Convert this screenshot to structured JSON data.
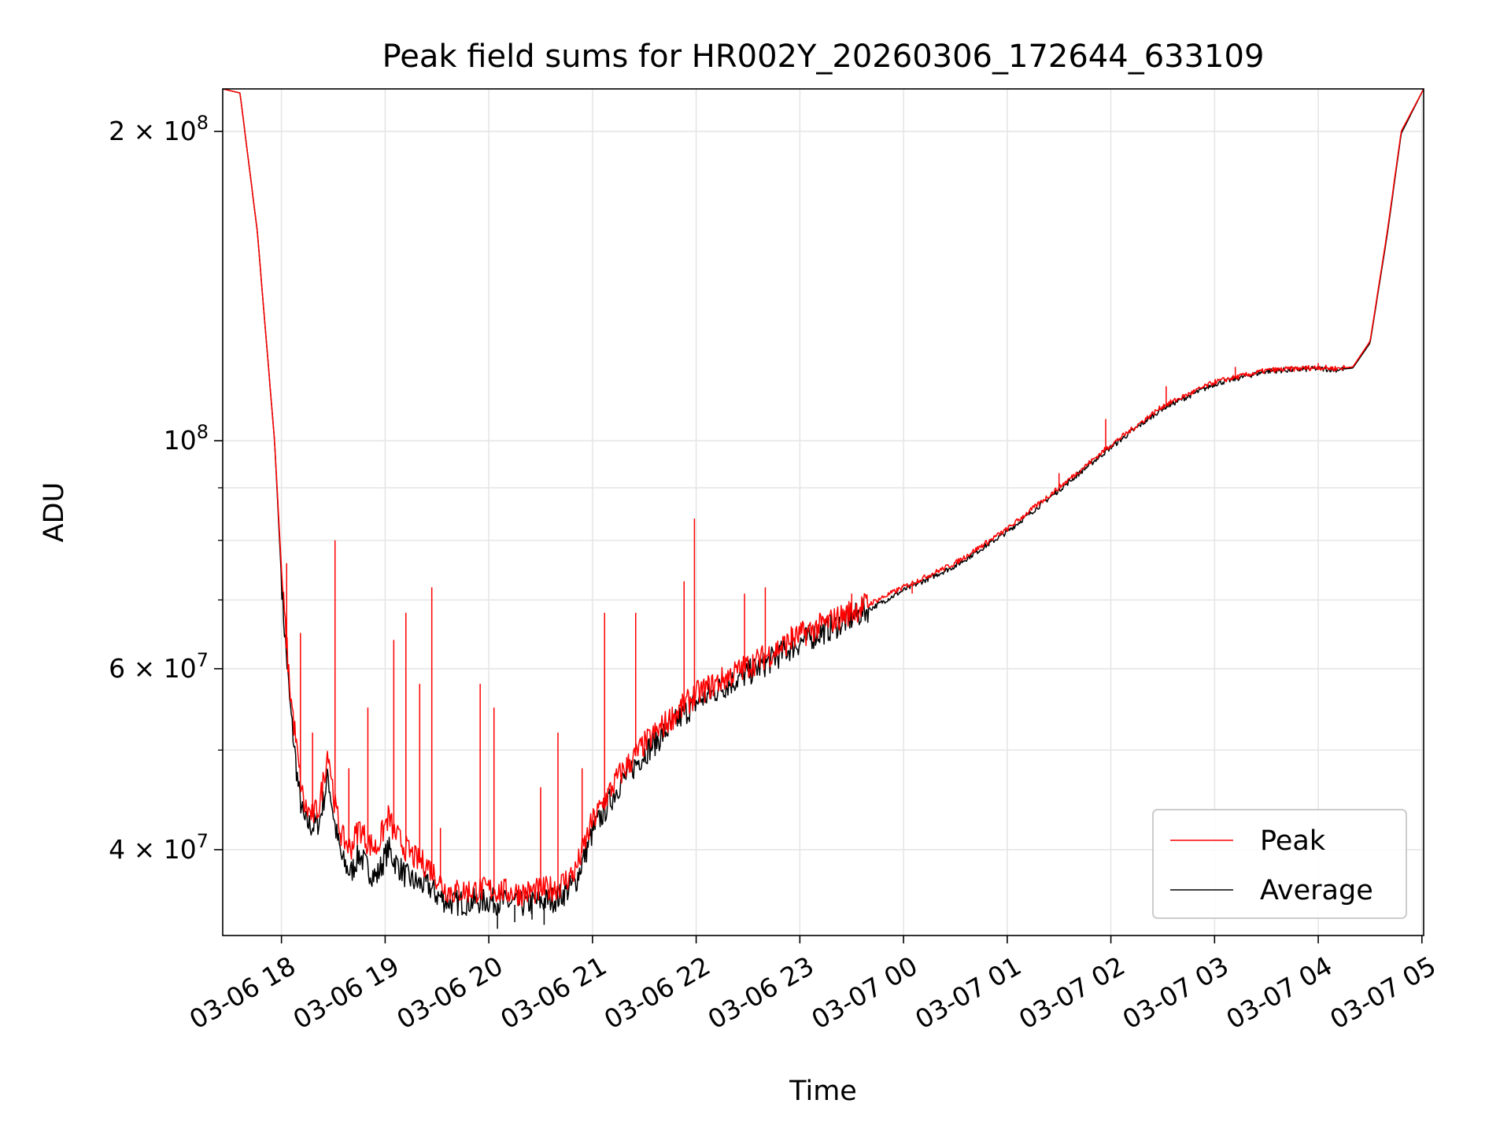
{
  "chart_data": {
    "type": "line",
    "title": "Peak field sums for HR002Y_20260306_172644_633109",
    "xlabel": "Time",
    "ylabel": "ADU",
    "y_scale": "log",
    "xlim": [
      "2026-03-06 17:26",
      "2026-03-07 05:01"
    ],
    "ylim": [
      33000000,
      220000000
    ],
    "grid": true,
    "legend_position": "lower-right",
    "x_ticks": [
      "03-06 18",
      "03-06 19",
      "03-06 20",
      "03-06 21",
      "03-06 22",
      "03-06 23",
      "03-07 00",
      "03-07 01",
      "03-07 02",
      "03-07 03",
      "03-07 04",
      "03-07 05"
    ],
    "x_tick_times": [
      "2026-03-06 18:00",
      "2026-03-06 19:00",
      "2026-03-06 20:00",
      "2026-03-06 21:00",
      "2026-03-06 22:00",
      "2026-03-06 23:00",
      "2026-03-07 00:00",
      "2026-03-07 01:00",
      "2026-03-07 02:00",
      "2026-03-07 03:00",
      "2026-03-07 04:00",
      "2026-03-07 05:00"
    ],
    "y_major_ticks": [
      {
        "value": 40000000,
        "label": "4×10^7"
      },
      {
        "value": 60000000,
        "label": "6×10^7"
      },
      {
        "value": 100000000,
        "label": "10^8"
      },
      {
        "value": 200000000,
        "label": "2×10^8"
      }
    ],
    "y_minor_ticks": [
      30000000,
      50000000,
      70000000,
      80000000,
      90000000
    ],
    "series": [
      {
        "name": "Peak",
        "color": "#ff0000",
        "x": [
          "2026-03-06 17:26",
          "2026-03-06 17:36",
          "2026-03-06 17:46",
          "2026-03-06 17:56",
          "2026-03-06 18:01",
          "2026-03-06 18:05",
          "2026-03-06 18:10",
          "2026-03-06 18:13",
          "2026-03-06 18:18",
          "2026-03-06 18:22",
          "2026-03-06 18:27",
          "2026-03-06 18:31",
          "2026-03-06 18:35",
          "2026-03-06 18:40",
          "2026-03-06 18:45",
          "2026-03-06 18:50",
          "2026-03-06 18:55",
          "2026-03-06 19:02",
          "2026-03-06 19:05",
          "2026-03-06 19:12",
          "2026-03-06 19:18",
          "2026-03-06 19:25",
          "2026-03-06 19:30",
          "2026-03-06 19:35",
          "2026-03-06 19:40",
          "2026-03-06 19:50",
          "2026-03-06 20:00",
          "2026-03-06 20:10",
          "2026-03-06 20:20",
          "2026-03-06 20:30",
          "2026-03-06 20:40",
          "2026-03-06 20:50",
          "2026-03-06 21:00",
          "2026-03-06 21:15",
          "2026-03-06 21:30",
          "2026-03-06 21:45",
          "2026-03-06 22:00",
          "2026-03-06 22:20",
          "2026-03-06 22:40",
          "2026-03-06 23:00",
          "2026-03-06 23:30",
          "2026-03-07 00:00",
          "2026-03-07 00:30",
          "2026-03-07 01:00",
          "2026-03-07 01:30",
          "2026-03-07 02:00",
          "2026-03-07 02:30",
          "2026-03-07 03:00",
          "2026-03-07 03:30",
          "2026-03-07 04:00",
          "2026-03-07 04:10",
          "2026-03-07 04:20",
          "2026-03-07 04:30",
          "2026-03-07 04:40",
          "2026-03-07 04:48",
          "2026-03-07 05:01"
        ],
        "values": [
          220000000,
          218000000,
          160000000,
          100000000,
          70000000,
          57000000,
          48000000,
          44000000,
          43000000,
          44000000,
          50000000,
          44000000,
          41000000,
          40000000,
          42000000,
          40500000,
          40000000,
          43000000,
          41500000,
          40000000,
          39000000,
          38500000,
          37500000,
          36500000,
          36300000,
          36400000,
          36500000,
          36300000,
          36200000,
          36400000,
          36700000,
          38000000,
          42500000,
          47000000,
          50500000,
          53500000,
          56500000,
          59000000,
          61500000,
          64500000,
          68000000,
          72000000,
          76000000,
          82000000,
          90000000,
          99000000,
          108000000,
          114000000,
          117000000,
          117800000,
          117500000,
          118000000,
          125000000,
          160000000,
          200000000,
          220000000
        ],
        "spikes": [
          {
            "x": "2026-03-06 18:03",
            "value": 76000000
          },
          {
            "x": "2026-03-06 18:11",
            "value": 65000000
          },
          {
            "x": "2026-03-06 18:18",
            "value": 52000000
          },
          {
            "x": "2026-03-06 18:31",
            "value": 80000000
          },
          {
            "x": "2026-03-06 18:39",
            "value": 48000000
          },
          {
            "x": "2026-03-06 18:50",
            "value": 55000000
          },
          {
            "x": "2026-03-06 19:05",
            "value": 64000000
          },
          {
            "x": "2026-03-06 19:12",
            "value": 68000000
          },
          {
            "x": "2026-03-06 19:20",
            "value": 58000000
          },
          {
            "x": "2026-03-06 19:27",
            "value": 72000000
          },
          {
            "x": "2026-03-06 19:32",
            "value": 42000000
          },
          {
            "x": "2026-03-06 19:55",
            "value": 58000000
          },
          {
            "x": "2026-03-06 20:03",
            "value": 55000000
          },
          {
            "x": "2026-03-06 20:30",
            "value": 46000000
          },
          {
            "x": "2026-03-06 20:40",
            "value": 52000000
          },
          {
            "x": "2026-03-06 20:54",
            "value": 48000000
          },
          {
            "x": "2026-03-06 21:07",
            "value": 68000000
          },
          {
            "x": "2026-03-06 21:25",
            "value": 68000000
          },
          {
            "x": "2026-03-06 21:53",
            "value": 73000000
          },
          {
            "x": "2026-03-06 21:59",
            "value": 84000000
          },
          {
            "x": "2026-03-06 22:28",
            "value": 71000000
          },
          {
            "x": "2026-03-06 22:40",
            "value": 72000000
          },
          {
            "x": "2026-03-06 22:55",
            "value": 66000000
          },
          {
            "x": "2026-03-06 23:05",
            "value": 66000000
          },
          {
            "x": "2026-03-06 23:30",
            "value": 71000000
          },
          {
            "x": "2026-03-07 00:05",
            "value": 71000000
          },
          {
            "x": "2026-03-07 00:30",
            "value": 76000000
          },
          {
            "x": "2026-03-07 00:53",
            "value": 81000000
          },
          {
            "x": "2026-03-07 01:30",
            "value": 93000000
          },
          {
            "x": "2026-03-07 01:57",
            "value": 105000000
          },
          {
            "x": "2026-03-07 02:32",
            "value": 113000000
          },
          {
            "x": "2026-03-07 03:12",
            "value": 118000000
          },
          {
            "x": "2026-03-07 04:00",
            "value": 119000000
          }
        ]
      },
      {
        "name": "Average",
        "color": "#000000",
        "x": [
          "2026-03-06 17:26",
          "2026-03-06 17:36",
          "2026-03-06 17:46",
          "2026-03-06 17:56",
          "2026-03-06 18:01",
          "2026-03-06 18:05",
          "2026-03-06 18:10",
          "2026-03-06 18:13",
          "2026-03-06 18:18",
          "2026-03-06 18:22",
          "2026-03-06 18:27",
          "2026-03-06 18:31",
          "2026-03-06 18:35",
          "2026-03-06 18:40",
          "2026-03-06 18:45",
          "2026-03-06 18:50",
          "2026-03-06 18:55",
          "2026-03-06 19:02",
          "2026-03-06 19:05",
          "2026-03-06 19:12",
          "2026-03-06 19:18",
          "2026-03-06 19:25",
          "2026-03-06 19:30",
          "2026-03-06 19:35",
          "2026-03-06 19:40",
          "2026-03-06 19:50",
          "2026-03-06 20:00",
          "2026-03-06 20:10",
          "2026-03-06 20:20",
          "2026-03-06 20:30",
          "2026-03-06 20:40",
          "2026-03-06 20:50",
          "2026-03-06 21:00",
          "2026-03-06 21:15",
          "2026-03-06 21:30",
          "2026-03-06 21:45",
          "2026-03-06 22:00",
          "2026-03-06 22:20",
          "2026-03-06 22:40",
          "2026-03-06 23:00",
          "2026-03-06 23:30",
          "2026-03-07 00:00",
          "2026-03-07 00:30",
          "2026-03-07 01:00",
          "2026-03-07 01:30",
          "2026-03-07 02:00",
          "2026-03-07 02:30",
          "2026-03-07 03:00",
          "2026-03-07 03:30",
          "2026-03-07 04:00",
          "2026-03-07 04:10",
          "2026-03-07 04:20",
          "2026-03-07 04:30",
          "2026-03-07 04:40",
          "2026-03-07 04:48",
          "2026-03-07 05:01"
        ],
        "values": [
          220000000,
          218000000,
          160000000,
          100000000,
          68000000,
          55000000,
          45500000,
          42500000,
          42000000,
          42500000,
          47000000,
          42000000,
          39000000,
          37800000,
          39500000,
          38200000,
          37500000,
          40000000,
          39000000,
          37600000,
          37000000,
          36800000,
          36000000,
          35600000,
          35400000,
          35500000,
          35600000,
          35400000,
          35300000,
          35500000,
          35800000,
          37000000,
          41500000,
          46000000,
          49500000,
          52500000,
          55500000,
          58000000,
          60500000,
          63500000,
          67000000,
          71500000,
          75500000,
          81500000,
          89500000,
          98500000,
          107500000,
          113500000,
          116800000,
          117500000,
          117200000,
          117700000,
          124500000,
          159000000,
          199000000,
          220000000
        ],
        "dips": [
          {
            "x": "2026-03-06 20:05",
            "value": 33500000
          },
          {
            "x": "2026-03-06 20:15",
            "value": 34000000
          },
          {
            "x": "2026-03-06 20:25",
            "value": 34200000
          },
          {
            "x": "2026-03-06 20:32",
            "value": 33800000
          }
        ]
      }
    ]
  }
}
